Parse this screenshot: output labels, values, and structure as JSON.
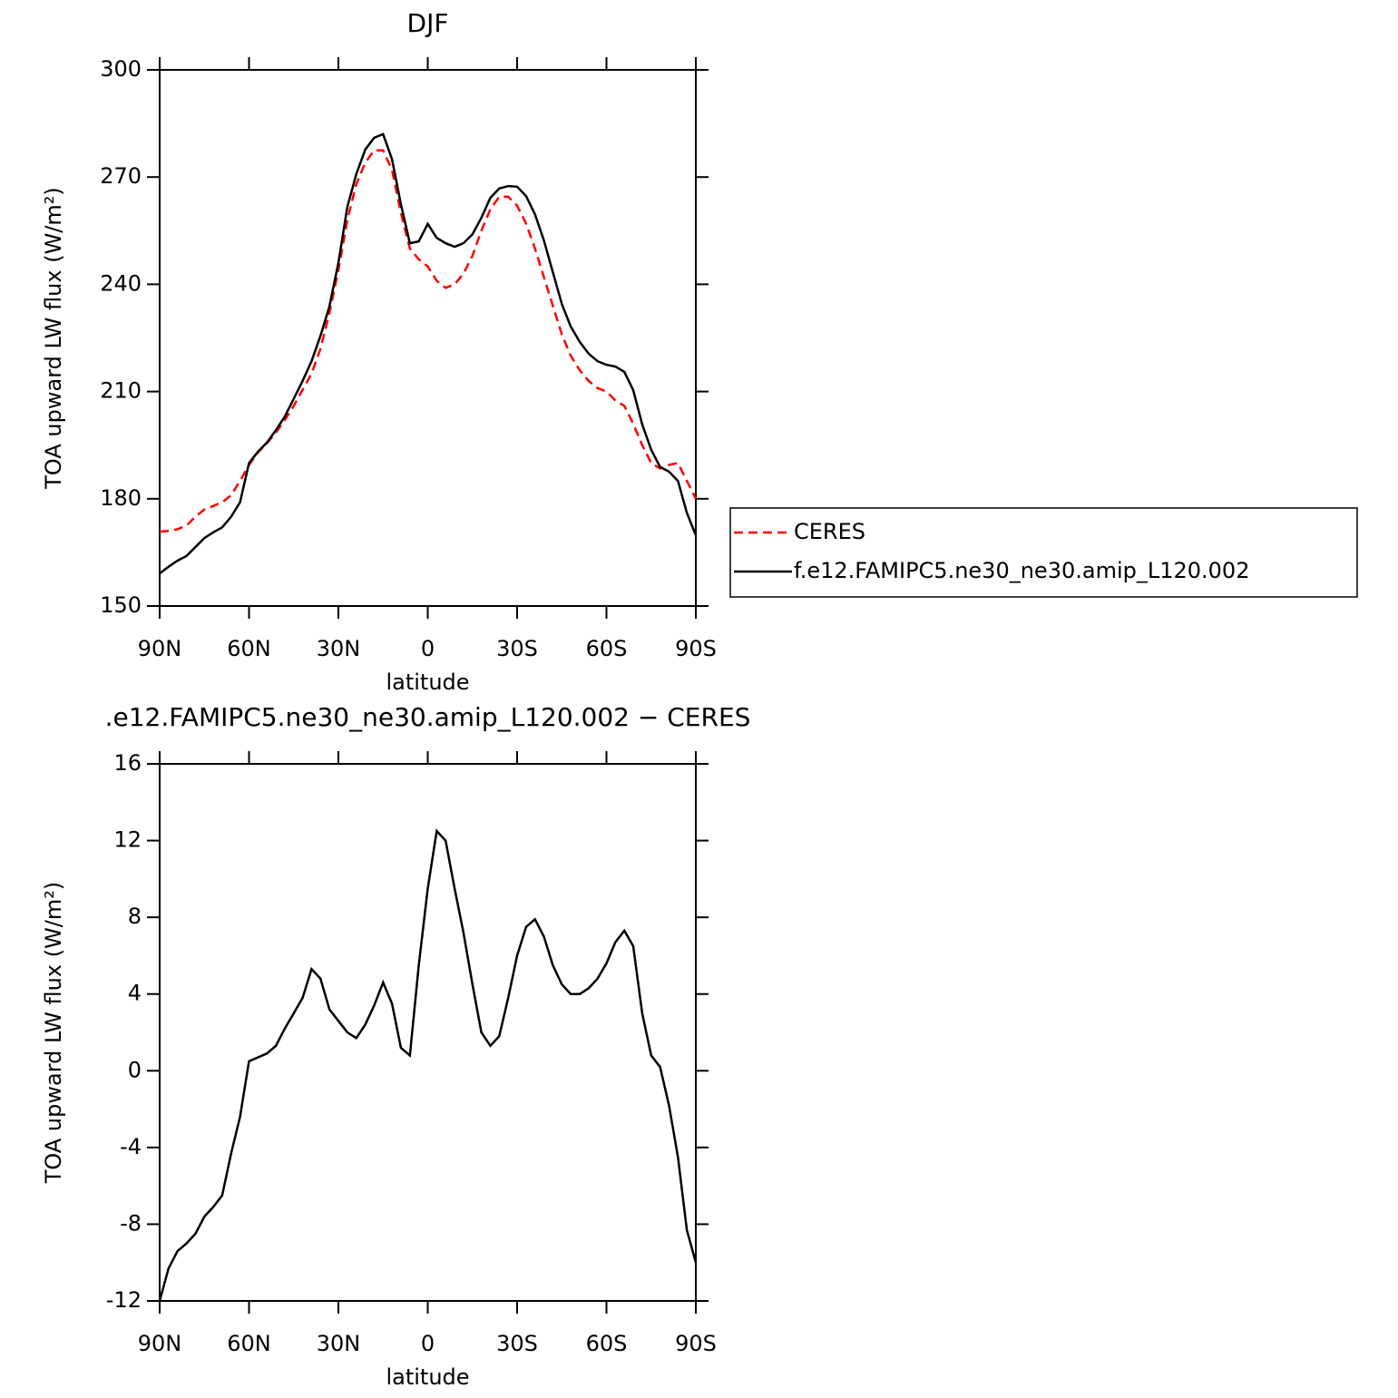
{
  "chart_data": [
    {
      "type": "line",
      "title": "DJF",
      "x_label": "latitude",
      "y_label": "TOA upward LW flux (W/m²)",
      "x": [
        90,
        87,
        84,
        81,
        78,
        75,
        72,
        69,
        66,
        63,
        60,
        57,
        54,
        51,
        48,
        45,
        42,
        39,
        36,
        33,
        30,
        27,
        24,
        21,
        18,
        15,
        12,
        9,
        6,
        3,
        0,
        -3,
        -6,
        -9,
        -12,
        -15,
        -18,
        -21,
        -24,
        -27,
        -30,
        -33,
        -36,
        -39,
        -42,
        -45,
        -48,
        -51,
        -54,
        -57,
        -60,
        -63,
        -66,
        -69,
        -72,
        -75,
        -78,
        -81,
        -84,
        -87,
        -90
      ],
      "series": [
        {
          "name": "CERES",
          "color": "#ff0000",
          "dash": true,
          "values": [
            170.8,
            171,
            171.5,
            172.5,
            175,
            177,
            178,
            179,
            181,
            185,
            189.5,
            193,
            195.5,
            198.5,
            202,
            206,
            210.5,
            215,
            222,
            232,
            244,
            258,
            268,
            274,
            277.5,
            277.5,
            272,
            260,
            250,
            247,
            245,
            241,
            239,
            240,
            243,
            248,
            255,
            261,
            264.5,
            264.5,
            262,
            257,
            250,
            242,
            234,
            226,
            220,
            216,
            213,
            211,
            210,
            207.5,
            206,
            201,
            195,
            190,
            188.5,
            189.5,
            190,
            185,
            180
          ]
        },
        {
          "name": "f.e12.FAMIPC5.ne30_ne30.amip_L120.002",
          "color": "#000000",
          "dash": false,
          "values": [
            159.1,
            161,
            162.7,
            164,
            166.5,
            169,
            170.6,
            172,
            175,
            179,
            190,
            193.2,
            195.7,
            199.2,
            203,
            208,
            213,
            218.5,
            225.6,
            233.8,
            246,
            261.7,
            270.8,
            277.7,
            281,
            282,
            275,
            262.4,
            251.5,
            252,
            256.9,
            253,
            251.5,
            250.5,
            251.5,
            254,
            258.6,
            264.2,
            266.8,
            267.5,
            267.3,
            264.7,
            259.6,
            252.3,
            243.4,
            234.5,
            228.2,
            223.9,
            220.6,
            218.5,
            217.5,
            217,
            215.5,
            210.4,
            200.8,
            193.7,
            188.9,
            187.6,
            185,
            176.1,
            169.8
          ]
        }
      ],
      "xlim": [
        90,
        -90
      ],
      "xticks": [
        {
          "value": 90,
          "label": "90N"
        },
        {
          "value": 60,
          "label": "60N"
        },
        {
          "value": 30,
          "label": "30N"
        },
        0,
        {
          "value": -30,
          "label": "30S"
        },
        {
          "value": -60,
          "label": "60S"
        },
        {
          "value": -90,
          "label": "90S"
        }
      ],
      "ylim": [
        150,
        300
      ],
      "yticks": [
        150,
        180,
        210,
        240,
        270,
        300
      ],
      "legend": "right"
    },
    {
      "type": "line",
      "title": ".e12.FAMIPC5.ne30_ne30.amip_L120.002 − CERES",
      "x_label": "latitude",
      "y_label": "TOA upward LW flux (W/m²)",
      "x": [
        90,
        87,
        84,
        81,
        78,
        75,
        72,
        69,
        66,
        63,
        60,
        57,
        54,
        51,
        48,
        45,
        42,
        39,
        36,
        33,
        30,
        27,
        24,
        21,
        18,
        15,
        12,
        9,
        6,
        3,
        0,
        -3,
        -6,
        -9,
        -12,
        -15,
        -18,
        -21,
        -24,
        -27,
        -30,
        -33,
        -36,
        -39,
        -42,
        -45,
        -48,
        -51,
        -54,
        -57,
        -60,
        -63,
        -66,
        -69,
        -72,
        -75,
        -78,
        -81,
        -84,
        -87,
        -90
      ],
      "series": [
        {
          "color": "#000000",
          "dash": false,
          "values": [
            -12,
            -10.3,
            -9.4,
            -9,
            -8.5,
            -7.6,
            -7.1,
            -6.5,
            -4.3,
            -2.4,
            0.5,
            0.7,
            0.9,
            1.3,
            2.2,
            3,
            3.8,
            5.3,
            4.8,
            3.2,
            2.6,
            2,
            1.7,
            2.4,
            3.4,
            4.6,
            3.5,
            1.2,
            0.8,
            5.5,
            9.5,
            12.5,
            12,
            9.5,
            7.2,
            4.5,
            2,
            1.3,
            1.8,
            3.8,
            6,
            7.5,
            7.9,
            7,
            5.5,
            4.5,
            4,
            4,
            4.3,
            4.8,
            5.6,
            6.7,
            7.3,
            6.5,
            3,
            0.8,
            0.2,
            -1.8,
            -4.5,
            -8.3,
            -10
          ]
        }
      ],
      "xlim": [
        90,
        -90
      ],
      "xticks": [
        {
          "value": 90,
          "label": "90N"
        },
        {
          "value": 60,
          "label": "60N"
        },
        {
          "value": 30,
          "label": "30N"
        },
        0,
        {
          "value": -30,
          "label": "30S"
        },
        {
          "value": -60,
          "label": "60S"
        },
        {
          "value": -90,
          "label": "90S"
        }
      ],
      "ylim": [
        -12,
        16
      ],
      "yticks": [
        -12,
        -8,
        -4,
        0,
        4,
        8,
        12,
        16
      ]
    }
  ]
}
